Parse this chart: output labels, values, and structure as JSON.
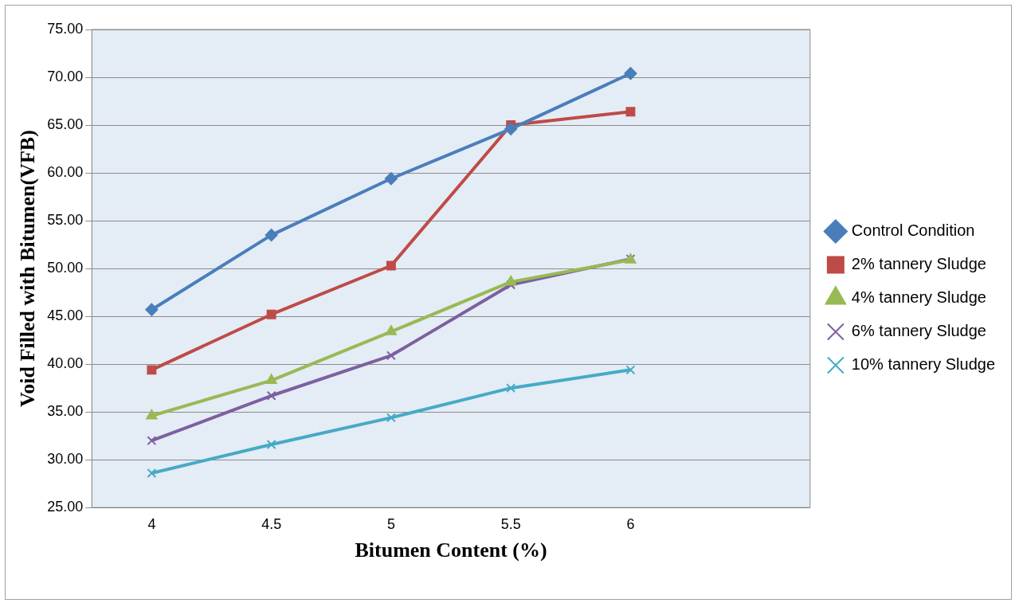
{
  "chart_data": {
    "type": "line",
    "xlabel": "Bitumen Content (%)",
    "ylabel": "Void Filled with Bitumen(VFB)",
    "categories": [
      "4",
      "4.5",
      "5",
      "5.5",
      "6",
      null
    ],
    "ylim": [
      25,
      75
    ],
    "yticks": [
      {
        "value": 25,
        "label": "25.00"
      },
      {
        "value": 30,
        "label": "30.00"
      },
      {
        "value": 35,
        "label": "35.00"
      },
      {
        "value": 40,
        "label": "40.00"
      },
      {
        "value": 45,
        "label": "45.00"
      },
      {
        "value": 50,
        "label": "50.00"
      },
      {
        "value": 55,
        "label": "55.00"
      },
      {
        "value": 60,
        "label": "60.00"
      },
      {
        "value": 65,
        "label": "65.00"
      },
      {
        "value": 70,
        "label": "70.00"
      },
      {
        "value": 75,
        "label": "75.00"
      }
    ],
    "grid": "y",
    "legend": "right",
    "line_style": "solid",
    "series": [
      {
        "name": "Control Condition",
        "color": "#4a7ebb",
        "marker": "diamond",
        "values": [
          45.7,
          53.5,
          59.4,
          64.6,
          70.4,
          null
        ]
      },
      {
        "name": "2% tannery Sludge",
        "color": "#be4b48",
        "marker": "square",
        "values": [
          39.4,
          45.2,
          50.3,
          65.0,
          66.4,
          null
        ]
      },
      {
        "name": "4% tannery Sludge",
        "color": "#98b954",
        "marker": "triangle",
        "values": [
          34.6,
          38.3,
          43.4,
          48.6,
          50.9,
          null
        ]
      },
      {
        "name": "6% tannery Sludge",
        "color": "#7d60a0",
        "marker": "cross",
        "values": [
          32.0,
          36.7,
          40.9,
          48.3,
          51.0,
          null
        ]
      },
      {
        "name": "10% tannery Sludge",
        "color": "#46aac5",
        "marker": "cross",
        "values": [
          28.6,
          31.6,
          34.4,
          37.5,
          39.4,
          null
        ]
      }
    ]
  }
}
